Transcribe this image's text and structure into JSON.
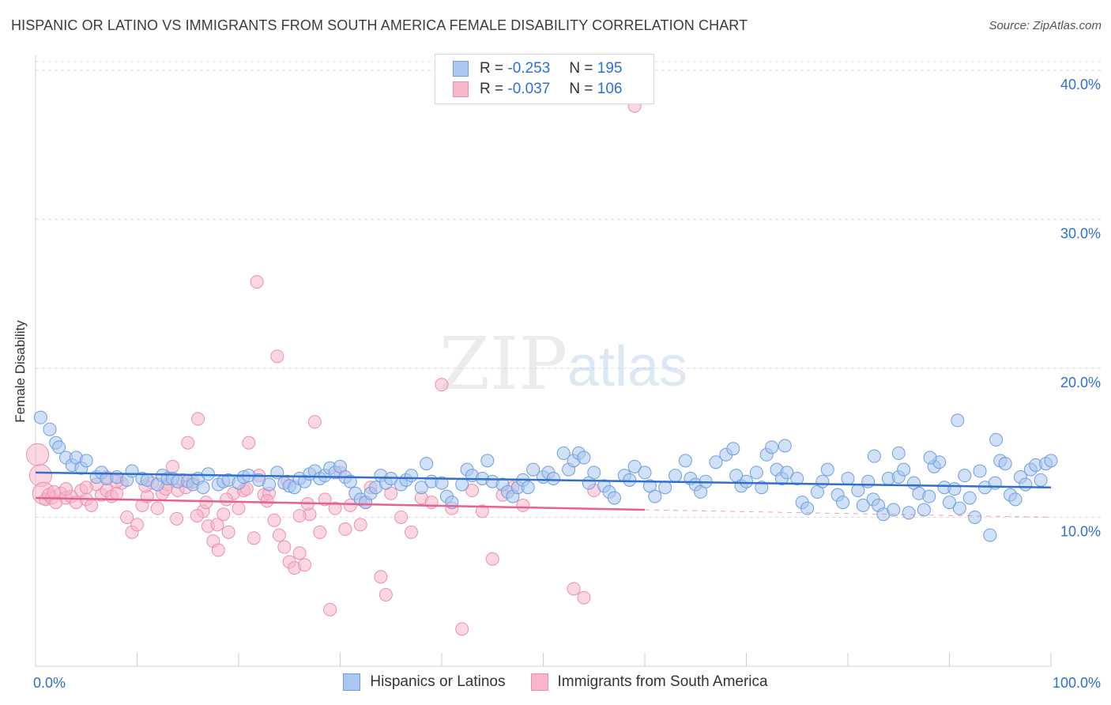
{
  "title": "HISPANIC OR LATINO VS IMMIGRANTS FROM SOUTH AMERICA FEMALE DISABILITY CORRELATION CHART",
  "source": "Source: ZipAtlas.com",
  "watermark": {
    "zip": "ZIP",
    "atlas": "atlas"
  },
  "legend": {
    "r_label": "R =",
    "n_label": "N =",
    "series": [
      {
        "r": "-0.253",
        "n": "195"
      },
      {
        "r": "-0.037",
        "n": "106"
      }
    ]
  },
  "chart_data": {
    "type": "scatter",
    "title": "HISPANIC OR LATINO VS IMMIGRANTS FROM SOUTH AMERICA FEMALE DISABILITY CORRELATION CHART",
    "xlabel": "",
    "ylabel": "Female Disability",
    "xlim": [
      0,
      100
    ],
    "ylim": [
      0,
      41
    ],
    "x_tick_labels": [
      "0.0%",
      "100.0%"
    ],
    "y_ticks": [
      10,
      20,
      30,
      40
    ],
    "y_tick_labels": [
      "10.0%",
      "20.0%",
      "30.0%",
      "40.0%"
    ],
    "colors": {
      "blue_fill": "#a9c7f0",
      "blue_stroke": "#6f9ee0",
      "blue_line": "#2f6fcf",
      "pink_fill": "#f7b6cb",
      "pink_stroke": "#ec8fac",
      "pink_line": "#e8608e",
      "grid": "#dcdcdc",
      "tick_label": "#2f6fcf"
    },
    "series": [
      {
        "name": "Hispanics or Latinos",
        "trend": {
          "x0": 0,
          "y0": 13.0,
          "x1": 100,
          "y1": 12.0
        },
        "points": [
          [
            0.5,
            16.7
          ],
          [
            1.4,
            15.9
          ],
          [
            2.0,
            15.0
          ],
          [
            2.3,
            14.7
          ],
          [
            3.0,
            14.0
          ],
          [
            3.6,
            13.5
          ],
          [
            4.0,
            14.0
          ],
          [
            4.5,
            13.3
          ],
          [
            5.0,
            13.8
          ],
          [
            6.0,
            12.7
          ],
          [
            6.5,
            13.0
          ],
          [
            7.0,
            12.6
          ],
          [
            8.0,
            12.7
          ],
          [
            9.0,
            12.5
          ],
          [
            9.5,
            13.1
          ],
          [
            10.5,
            12.6
          ],
          [
            11.0,
            12.5
          ],
          [
            12.0,
            12.2
          ],
          [
            12.5,
            12.8
          ],
          [
            13.0,
            12.6
          ],
          [
            13.5,
            12.6
          ],
          [
            14.0,
            12.4
          ],
          [
            15.0,
            12.4
          ],
          [
            15.5,
            12.2
          ],
          [
            16.0,
            12.6
          ],
          [
            16.5,
            12.0
          ],
          [
            17.0,
            12.9
          ],
          [
            18.0,
            12.2
          ],
          [
            18.5,
            12.4
          ],
          [
            19.0,
            12.5
          ],
          [
            20.0,
            12.3
          ],
          [
            20.5,
            12.7
          ],
          [
            21.0,
            12.8
          ],
          [
            22.0,
            12.5
          ],
          [
            23.0,
            12.2
          ],
          [
            23.8,
            13.0
          ],
          [
            24.5,
            12.3
          ],
          [
            25.0,
            12.1
          ],
          [
            25.5,
            12.0
          ],
          [
            26.0,
            12.6
          ],
          [
            26.5,
            12.4
          ],
          [
            27.0,
            12.9
          ],
          [
            27.5,
            13.1
          ],
          [
            28.0,
            12.6
          ],
          [
            28.5,
            12.8
          ],
          [
            29.0,
            13.3
          ],
          [
            29.5,
            13.0
          ],
          [
            30.0,
            13.4
          ],
          [
            30.5,
            12.7
          ],
          [
            31.0,
            12.4
          ],
          [
            31.5,
            11.6
          ],
          [
            32.0,
            11.2
          ],
          [
            32.5,
            11.0
          ],
          [
            33.0,
            11.6
          ],
          [
            33.5,
            12.0
          ],
          [
            34.0,
            12.8
          ],
          [
            34.5,
            12.3
          ],
          [
            35.0,
            12.6
          ],
          [
            36.0,
            12.2
          ],
          [
            36.5,
            12.5
          ],
          [
            37.0,
            12.8
          ],
          [
            38.0,
            12.0
          ],
          [
            38.5,
            13.6
          ],
          [
            39.0,
            12.4
          ],
          [
            40.0,
            12.3
          ],
          [
            40.5,
            11.4
          ],
          [
            41.0,
            11.0
          ],
          [
            42.0,
            12.2
          ],
          [
            42.5,
            13.2
          ],
          [
            43.0,
            12.8
          ],
          [
            44.0,
            12.6
          ],
          [
            44.5,
            13.8
          ],
          [
            45.0,
            12.4
          ],
          [
            46.0,
            12.2
          ],
          [
            46.5,
            11.7
          ],
          [
            47.0,
            11.4
          ],
          [
            47.5,
            12.0
          ],
          [
            48.0,
            12.5
          ],
          [
            48.5,
            12.0
          ],
          [
            49.0,
            13.2
          ],
          [
            50.0,
            12.7
          ],
          [
            50.5,
            13.0
          ],
          [
            51.0,
            12.6
          ],
          [
            52.0,
            14.3
          ],
          [
            52.5,
            13.2
          ],
          [
            53.0,
            13.8
          ],
          [
            53.5,
            14.3
          ],
          [
            54.0,
            14.0
          ],
          [
            54.5,
            12.3
          ],
          [
            55.0,
            13.0
          ],
          [
            56.0,
            12.1
          ],
          [
            56.5,
            11.7
          ],
          [
            57.0,
            11.3
          ],
          [
            58.0,
            12.8
          ],
          [
            58.5,
            12.5
          ],
          [
            59.0,
            13.4
          ],
          [
            60.0,
            13.0
          ],
          [
            60.5,
            12.1
          ],
          [
            61.0,
            11.4
          ],
          [
            62.0,
            12.0
          ],
          [
            63.0,
            12.8
          ],
          [
            64.0,
            13.8
          ],
          [
            64.5,
            12.6
          ],
          [
            65.0,
            12.2
          ],
          [
            65.5,
            11.7
          ],
          [
            66.0,
            12.4
          ],
          [
            67.0,
            13.7
          ],
          [
            68.0,
            14.2
          ],
          [
            69.0,
            12.8
          ],
          [
            69.5,
            12.1
          ],
          [
            70.0,
            12.4
          ],
          [
            71.0,
            13.0
          ],
          [
            71.5,
            12.0
          ],
          [
            72.0,
            14.2
          ],
          [
            72.5,
            14.7
          ],
          [
            73.0,
            13.2
          ],
          [
            73.5,
            12.6
          ],
          [
            74.0,
            13.0
          ],
          [
            75.0,
            12.6
          ],
          [
            75.5,
            11.0
          ],
          [
            76.0,
            10.6
          ],
          [
            77.0,
            11.7
          ],
          [
            77.5,
            12.4
          ],
          [
            78.0,
            13.2
          ],
          [
            79.0,
            11.5
          ],
          [
            79.5,
            11.0
          ],
          [
            80.0,
            12.6
          ],
          [
            81.0,
            11.8
          ],
          [
            81.5,
            10.8
          ],
          [
            82.0,
            12.4
          ],
          [
            82.5,
            11.2
          ],
          [
            83.0,
            10.8
          ],
          [
            83.5,
            10.2
          ],
          [
            84.0,
            12.6
          ],
          [
            84.5,
            10.5
          ],
          [
            85.0,
            12.7
          ],
          [
            85.5,
            13.2
          ],
          [
            86.0,
            10.3
          ],
          [
            86.5,
            12.3
          ],
          [
            87.0,
            11.6
          ],
          [
            87.5,
            10.5
          ],
          [
            88.0,
            11.4
          ],
          [
            88.5,
            13.4
          ],
          [
            89.0,
            13.7
          ],
          [
            89.5,
            12.0
          ],
          [
            90.0,
            11.0
          ],
          [
            90.5,
            11.9
          ],
          [
            91.0,
            10.6
          ],
          [
            91.5,
            12.8
          ],
          [
            92.0,
            11.3
          ],
          [
            92.5,
            10.0
          ],
          [
            93.0,
            13.1
          ],
          [
            93.5,
            12.0
          ],
          [
            94.0,
            8.8
          ],
          [
            94.5,
            12.3
          ],
          [
            95.0,
            13.8
          ],
          [
            95.5,
            13.6
          ],
          [
            96.0,
            11.5
          ],
          [
            96.5,
            11.2
          ],
          [
            97.0,
            12.7
          ],
          [
            97.5,
            12.2
          ],
          [
            98.0,
            13.2
          ],
          [
            98.5,
            13.5
          ],
          [
            99.0,
            12.5
          ],
          [
            99.5,
            13.6
          ],
          [
            100.0,
            13.8
          ],
          [
            90.8,
            16.5
          ],
          [
            94.6,
            15.2
          ],
          [
            68.7,
            14.6
          ],
          [
            73.8,
            14.8
          ],
          [
            88.1,
            14.0
          ],
          [
            85.0,
            14.3
          ],
          [
            82.6,
            14.1
          ]
        ]
      },
      {
        "name": "Immigrants from South America",
        "trend": {
          "x0": 0,
          "y0": 11.3,
          "x1": 60,
          "y1": 10.5,
          "dash_to": 100,
          "dash_y": 10.0
        },
        "points": [
          [
            0.2,
            14.2
          ],
          [
            0.5,
            12.8
          ],
          [
            0.8,
            11.6
          ],
          [
            1.0,
            11.2
          ],
          [
            1.3,
            11.5
          ],
          [
            1.6,
            11.3
          ],
          [
            2.0,
            11.0
          ],
          [
            2.5,
            11.6
          ],
          [
            3.0,
            11.3
          ],
          [
            3.5,
            11.4
          ],
          [
            4.0,
            11.0
          ],
          [
            4.5,
            11.8
          ],
          [
            5.0,
            11.2
          ],
          [
            5.5,
            10.8
          ],
          [
            6.0,
            12.2
          ],
          [
            6.5,
            11.5
          ],
          [
            7.0,
            11.8
          ],
          [
            7.5,
            11.4
          ],
          [
            8.0,
            11.6
          ],
          [
            8.5,
            12.3
          ],
          [
            9.0,
            10.0
          ],
          [
            9.5,
            9.0
          ],
          [
            10.0,
            9.5
          ],
          [
            10.5,
            10.8
          ],
          [
            11.0,
            11.4
          ],
          [
            11.5,
            12.3
          ],
          [
            12.0,
            10.6
          ],
          [
            12.5,
            11.6
          ],
          [
            13.0,
            12.2
          ],
          [
            13.5,
            13.4
          ],
          [
            14.0,
            11.8
          ],
          [
            14.5,
            12.5
          ],
          [
            15.0,
            15.0
          ],
          [
            15.5,
            12.4
          ],
          [
            16.0,
            16.6
          ],
          [
            16.5,
            10.4
          ],
          [
            17.0,
            9.4
          ],
          [
            17.5,
            8.4
          ],
          [
            18.0,
            7.8
          ],
          [
            18.5,
            10.2
          ],
          [
            19.0,
            9.0
          ],
          [
            19.5,
            11.6
          ],
          [
            20.0,
            10.6
          ],
          [
            20.5,
            11.8
          ],
          [
            21.0,
            15.0
          ],
          [
            21.5,
            8.6
          ],
          [
            22.0,
            12.8
          ],
          [
            22.5,
            11.5
          ],
          [
            23.0,
            11.6
          ],
          [
            23.5,
            9.8
          ],
          [
            24.0,
            8.8
          ],
          [
            24.5,
            8.0
          ],
          [
            25.0,
            7.0
          ],
          [
            25.5,
            6.6
          ],
          [
            26.0,
            7.6
          ],
          [
            26.5,
            6.8
          ],
          [
            27.0,
            10.2
          ],
          [
            27.5,
            16.4
          ],
          [
            28.0,
            9.0
          ],
          [
            28.5,
            11.2
          ],
          [
            29.0,
            3.8
          ],
          [
            29.5,
            10.6
          ],
          [
            30.0,
            13.0
          ],
          [
            30.5,
            9.2
          ],
          [
            31.0,
            10.8
          ],
          [
            32.0,
            9.5
          ],
          [
            32.5,
            11.0
          ],
          [
            33.0,
            12.0
          ],
          [
            34.0,
            6.0
          ],
          [
            34.5,
            4.8
          ],
          [
            35.0,
            11.6
          ],
          [
            36.0,
            10.0
          ],
          [
            37.0,
            9.0
          ],
          [
            38.0,
            11.3
          ],
          [
            39.0,
            11.0
          ],
          [
            40.0,
            18.9
          ],
          [
            41.0,
            10.6
          ],
          [
            42.0,
            2.5
          ],
          [
            43.0,
            11.8
          ],
          [
            44.0,
            10.4
          ],
          [
            45.0,
            7.2
          ],
          [
            46.0,
            11.5
          ],
          [
            47.0,
            12.0
          ],
          [
            48.0,
            10.8
          ],
          [
            53.0,
            5.2
          ],
          [
            54.0,
            4.6
          ],
          [
            55.0,
            11.8
          ],
          [
            59.0,
            37.6
          ],
          [
            21.8,
            25.8
          ],
          [
            23.8,
            20.8
          ],
          [
            8.0,
            12.4
          ],
          [
            5.0,
            12.0
          ],
          [
            3.0,
            11.9
          ],
          [
            1.8,
            11.7
          ],
          [
            7.0,
            12.7
          ],
          [
            10.8,
            12.1
          ],
          [
            12.8,
            11.9
          ],
          [
            14.8,
            12.0
          ],
          [
            16.8,
            11.0
          ],
          [
            18.8,
            11.2
          ],
          [
            20.8,
            11.9
          ],
          [
            22.8,
            11.1
          ],
          [
            24.8,
            12.4
          ],
          [
            26.8,
            10.9
          ],
          [
            13.9,
            9.9
          ],
          [
            15.9,
            10.1
          ],
          [
            17.9,
            9.5
          ],
          [
            26.0,
            10.1
          ]
        ]
      }
    ]
  },
  "bottom_legend": [
    {
      "label": "Hispanics or Latinos"
    },
    {
      "label": "Immigrants from South America"
    }
  ]
}
